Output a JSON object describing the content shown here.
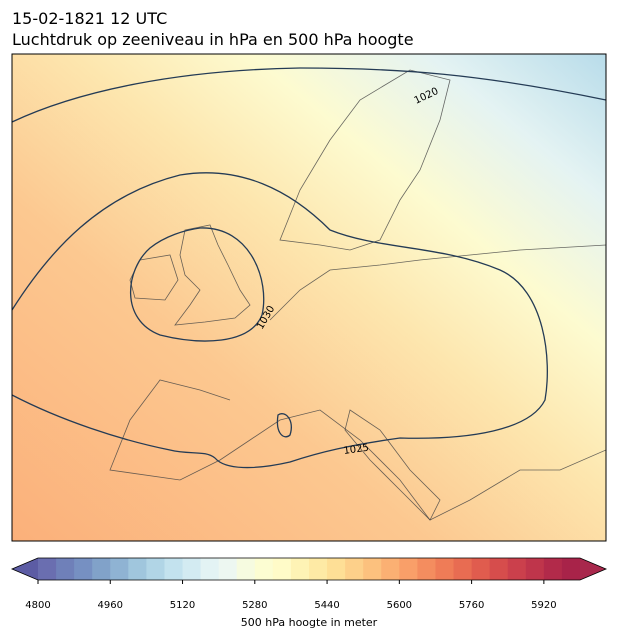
{
  "header": {
    "date": "15-02-1821 12 UTC",
    "title": "Luchtdruk op zeeniveau in hPa en 500 hPa hoogte"
  },
  "map": {
    "contour_labels": [
      1020,
      1030,
      1025
    ]
  },
  "colorbar": {
    "label": "500 hPa hoogte in meter",
    "lim": [
      4800,
      6000
    ],
    "ticks": [
      4800,
      4960,
      5120,
      5280,
      5440,
      5600,
      5760,
      5920
    ],
    "under_color": "#5c5ca4",
    "over_color": "#a8284c",
    "colors": [
      "#6a6eb0",
      "#6f80b9",
      "#7690c2",
      "#81a2c9",
      "#8fb3d3",
      "#a0c6dd",
      "#b1d5e6",
      "#c3e2ee",
      "#d3ebf2",
      "#e3f3f4",
      "#edf7f1",
      "#f6fbe0",
      "#fcfdd2",
      "#fffbc8",
      "#fef3b5",
      "#feeaa5",
      "#fedf96",
      "#fdd08a",
      "#fcc17e",
      "#fbb073",
      "#f99f69",
      "#f48d5f",
      "#ef7c57",
      "#e86c52",
      "#e05c4e",
      "#d64d4c",
      "#cb404c",
      "#bf354b",
      "#b22a4a",
      "#a82349"
    ]
  }
}
